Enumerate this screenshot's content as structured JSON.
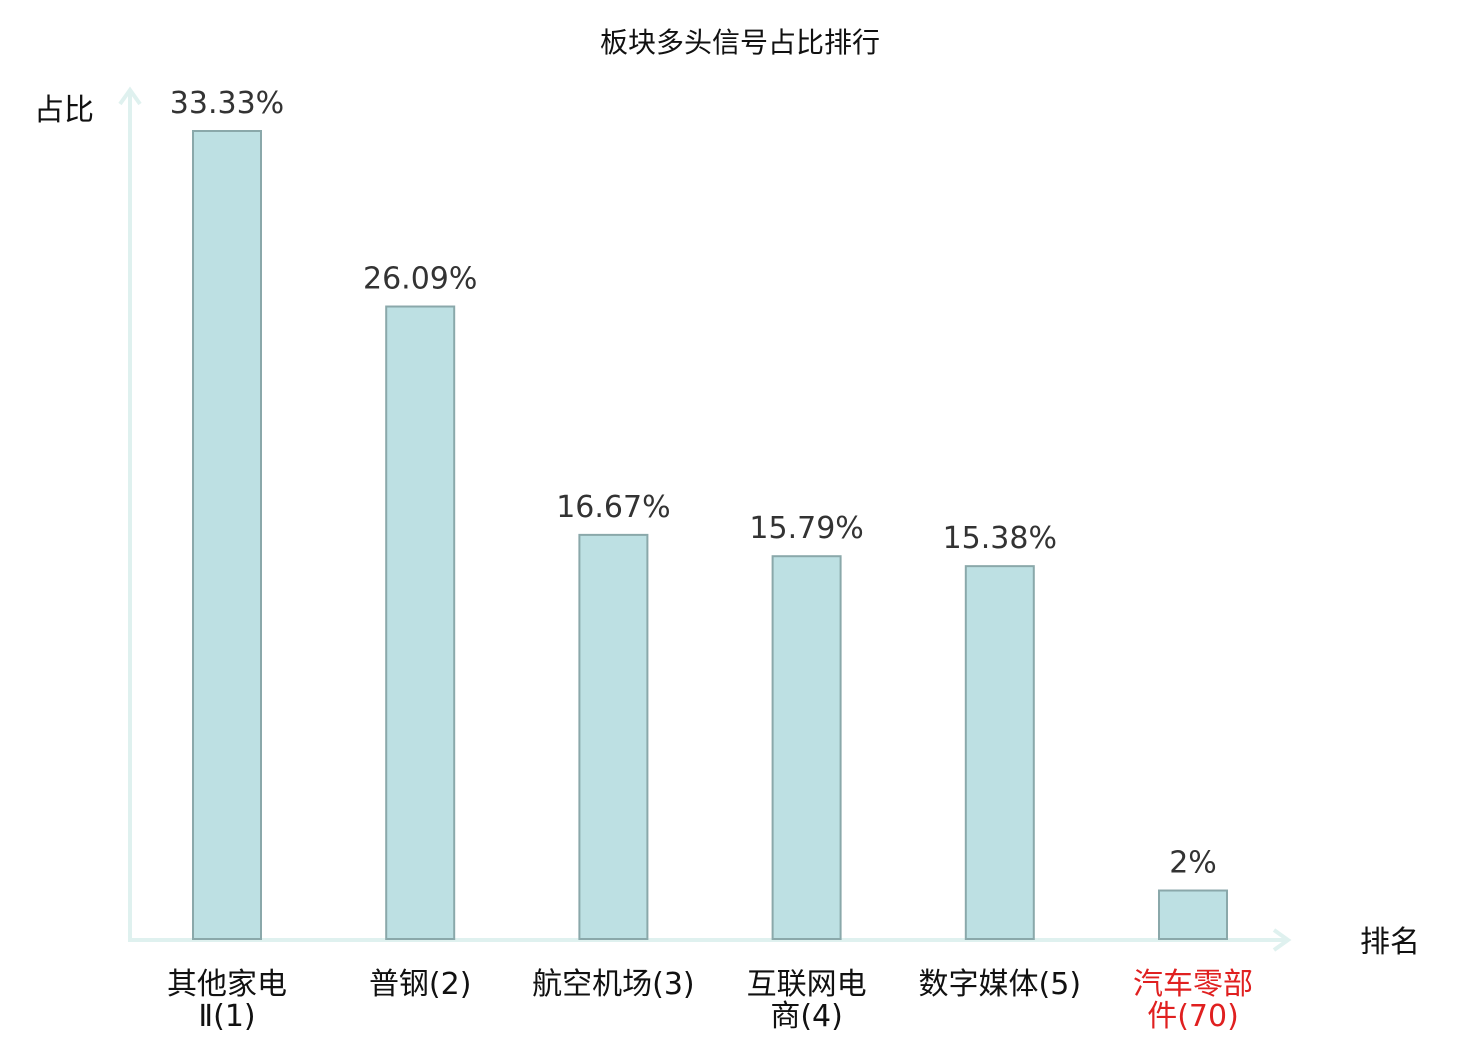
{
  "chart_data": {
    "type": "bar",
    "title": "板块多头信号占比排行",
    "ylabel": "占比",
    "xlabel": "排名",
    "ylim": [
      0,
      35
    ],
    "grid": false,
    "categories": [
      {
        "lines": [
          "其他家电",
          "Ⅱ(1)"
        ],
        "highlight": false
      },
      {
        "lines": [
          "普钢(2)"
        ],
        "highlight": false
      },
      {
        "lines": [
          "航空机场(3)"
        ],
        "highlight": false
      },
      {
        "lines": [
          "互联网电",
          "商(4)"
        ],
        "highlight": false
      },
      {
        "lines": [
          "数字媒体(5)"
        ],
        "highlight": false
      },
      {
        "lines": [
          "汽车零部",
          "件(70)"
        ],
        "highlight": true
      }
    ],
    "values": [
      33.33,
      26.09,
      16.67,
      15.79,
      15.38,
      2
    ],
    "value_labels": [
      "33.33%",
      "26.09%",
      "16.67%",
      "15.79%",
      "15.38%",
      "2%"
    ],
    "colors": {
      "bar_fill": "#bde0e3",
      "bar_stroke": "#8aa8aa",
      "axis": "#dff1ef",
      "label": "#111111",
      "highlight": "#e02020"
    }
  }
}
